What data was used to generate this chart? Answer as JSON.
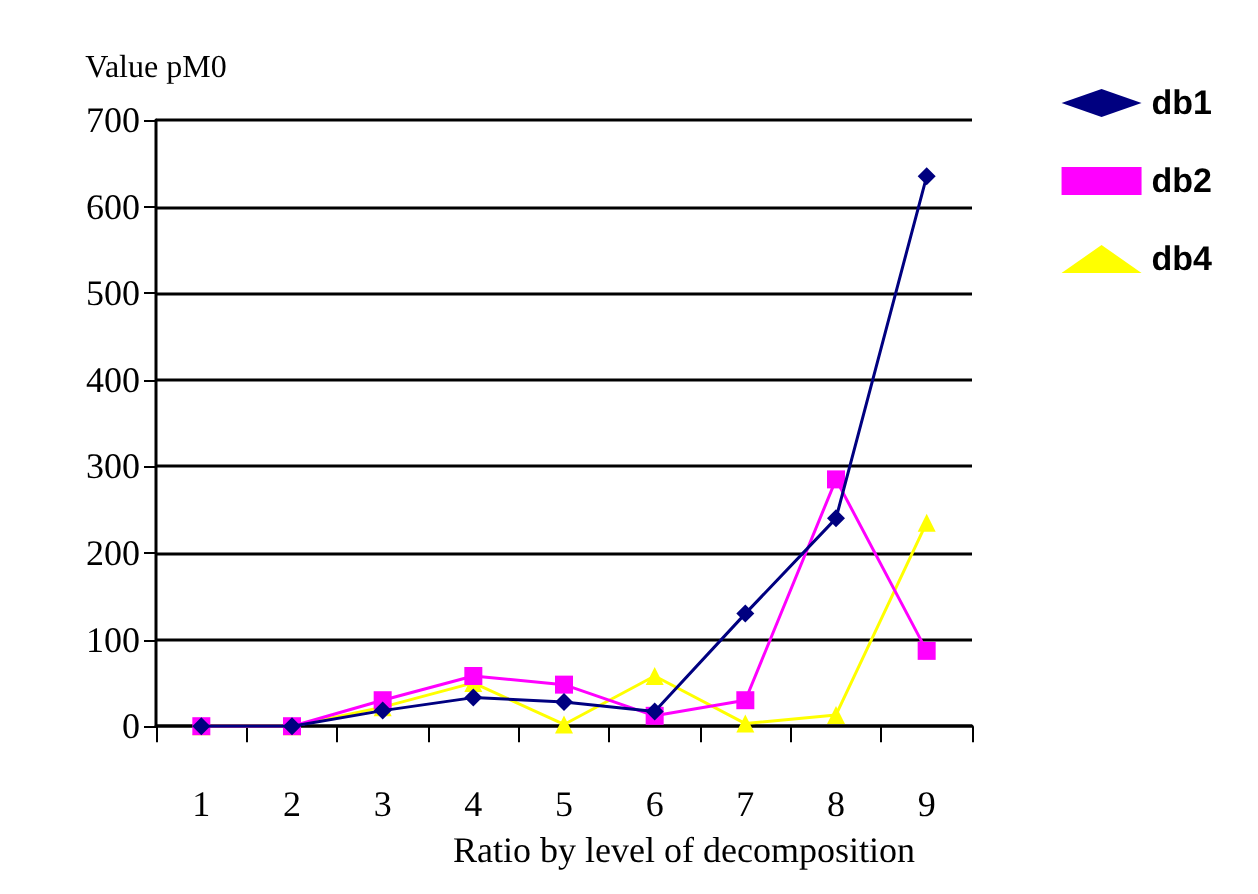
{
  "chart_data": {
    "type": "line",
    "ylabel": "Value pM0",
    "xlabel": "Ratio by level of decomposition",
    "categories": [
      "1",
      "2",
      "3",
      "4",
      "5",
      "6",
      "7",
      "8",
      "9"
    ],
    "series": [
      {
        "name": "db1",
        "color": "#000080",
        "marker": "diamond",
        "values": [
          0,
          0,
          18,
          33,
          28,
          17,
          130,
          240,
          635
        ]
      },
      {
        "name": "db2",
        "color": "#ff00ff",
        "marker": "square",
        "values": [
          0,
          0,
          30,
          58,
          48,
          12,
          30,
          285,
          87
        ]
      },
      {
        "name": "db4",
        "color": "#ffff00",
        "marker": "triangle",
        "values": [
          0,
          0,
          22,
          50,
          2,
          58,
          3,
          13,
          235
        ]
      }
    ],
    "ylim": [
      0,
      700
    ],
    "yticks": [
      0,
      100,
      200,
      300,
      400,
      500,
      600,
      700
    ],
    "grid": "y",
    "legend": "right",
    "line_style": "solid"
  }
}
